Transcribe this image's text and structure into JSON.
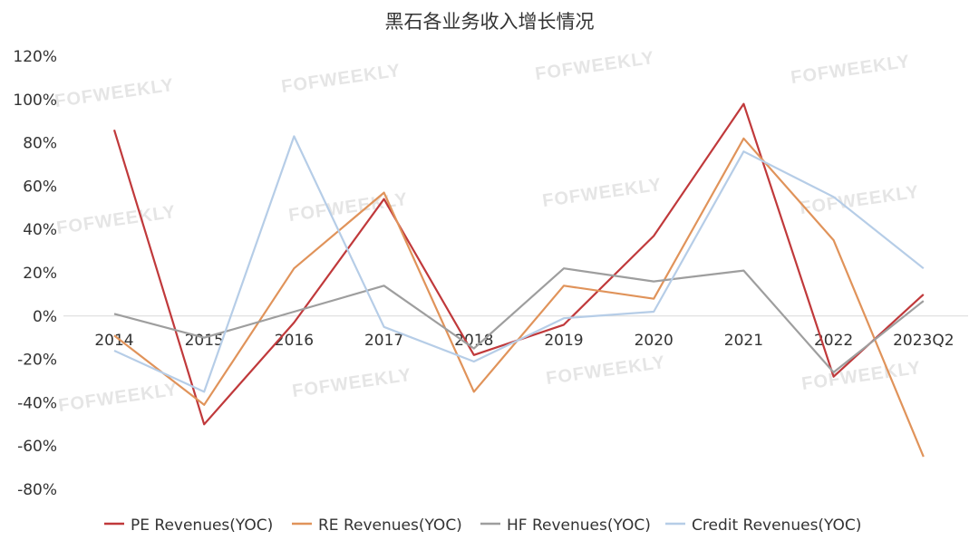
{
  "chart_data": {
    "type": "line",
    "title": "黑石各业务收入增长情况",
    "categories": [
      "2014",
      "2015",
      "2016",
      "2017",
      "2018",
      "2019",
      "2020",
      "2021",
      "2022",
      "2023Q2"
    ],
    "y_ticks": [
      "120%",
      "100%",
      "80%",
      "60%",
      "40%",
      "20%",
      "0%",
      "-20%",
      "-40%",
      "-60%",
      "-80%"
    ],
    "ylim": [
      -80,
      120
    ],
    "ylabel": "",
    "xlabel": "",
    "grid": false,
    "legend_position": "bottom",
    "series": [
      {
        "name": "PE Revenues(YOC)",
        "color": "#c0393b",
        "values": [
          86,
          -50,
          -3,
          54,
          -18,
          -4,
          37,
          98,
          -28,
          10
        ]
      },
      {
        "name": "RE Revenues(YOC)",
        "color": "#e0935a",
        "values": [
          -9,
          -41,
          22,
          57,
          -35,
          14,
          8,
          82,
          35,
          -65
        ]
      },
      {
        "name": "HF Revenues(YOC)",
        "color": "#9e9e9e",
        "values": [
          1,
          -10,
          2,
          14,
          -15,
          22,
          16,
          21,
          -26,
          7
        ]
      },
      {
        "name": "Credit Revenues(YOC)",
        "color": "#b6cde7",
        "values": [
          -16,
          -35,
          83,
          -5,
          -21,
          -1,
          2,
          76,
          55,
          22
        ]
      }
    ]
  },
  "watermark_text": "FOFWEEKLY"
}
